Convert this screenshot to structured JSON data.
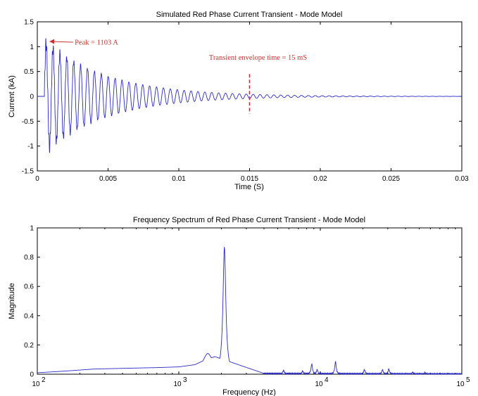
{
  "colors": {
    "signal": "#2a2ac8",
    "annotation": "#c83232",
    "axis": "#000000"
  },
  "chart_data": [
    {
      "type": "line",
      "title": "Simulated Red Phase Current Transient - Mode Model",
      "xlabel": "Time (S)",
      "ylabel": "Current (kA)",
      "xlim": [
        0,
        0.03
      ],
      "ylim": [
        -1.5,
        1.5
      ],
      "xticks": [
        0,
        0.005,
        0.01,
        0.015,
        0.02,
        0.025,
        0.03
      ],
      "xtick_labels": [
        "0",
        "0.005",
        "0.01",
        "0.015",
        "0.02",
        "0.025",
        "0.03"
      ],
      "yticks": [
        -1.5,
        -1,
        -0.5,
        0,
        0.5,
        1,
        1.5
      ],
      "ytick_labels": [
        "-1.5",
        "-1",
        "-0.5",
        "0",
        "0.5",
        "1",
        "1.5"
      ],
      "grid": false,
      "series": [
        {
          "description": "damped oscillatory current, ~2 kHz, onset near 0.0005 s",
          "onset_time": 0.0005,
          "oscillation_hz": 2050,
          "initial_amplitude_kA": 1.1,
          "decay_time_constant_s": 0.0045,
          "high_freq_ripple_hz": 13000,
          "high_freq_ripple_amplitude_kA": 0.15
        }
      ],
      "annotations": [
        {
          "text": "Peak = 1103 A",
          "x": 0.00075,
          "y": 1.103,
          "type": "arrow"
        },
        {
          "text": "Transient envelope time = 15 mS",
          "x": 0.015,
          "type": "vertical-dashed-line",
          "y_range": [
            -0.35,
            0.45
          ]
        }
      ]
    },
    {
      "type": "line",
      "title": "Frequency Spectrum of Red Phase Current Transient - Mode Model",
      "xlabel": "Frequency (Hz)",
      "ylabel": "Magnitude",
      "xscale": "log",
      "xlim": [
        100,
        100000
      ],
      "ylim": [
        0,
        1
      ],
      "xticks": [
        100,
        1000,
        10000,
        100000
      ],
      "xtick_base": "10",
      "xtick_exponents": [
        "2",
        "3",
        "4",
        "5"
      ],
      "yticks": [
        0,
        0.2,
        0.4,
        0.6,
        0.8,
        1
      ],
      "ytick_labels": [
        "0",
        "0.2",
        "0.4",
        "0.6",
        "0.8",
        "1"
      ],
      "grid": false,
      "baseline_points": [
        [
          100,
          0.01
        ],
        [
          150,
          0.02
        ],
        [
          250,
          0.035
        ],
        [
          400,
          0.04
        ],
        [
          700,
          0.045
        ],
        [
          1000,
          0.05
        ],
        [
          1300,
          0.065
        ],
        [
          1550,
          0.1
        ],
        [
          1800,
          0.12
        ],
        [
          4000,
          0.005
        ],
        [
          100000,
          0.002
        ]
      ],
      "peaks": [
        {
          "freq": 1600,
          "mag": 0.11
        },
        {
          "freq": 2100,
          "mag": 0.87
        },
        {
          "freq": 5500,
          "mag": 0.025
        },
        {
          "freq": 7500,
          "mag": 0.02
        },
        {
          "freq": 8700,
          "mag": 0.07
        },
        {
          "freq": 9500,
          "mag": 0.03
        },
        {
          "freq": 12800,
          "mag": 0.085
        },
        {
          "freq": 20500,
          "mag": 0.03
        },
        {
          "freq": 27500,
          "mag": 0.03
        },
        {
          "freq": 30500,
          "mag": 0.035
        },
        {
          "freq": 45000,
          "mag": 0.012
        },
        {
          "freq": 55000,
          "mag": 0.01
        }
      ]
    }
  ]
}
